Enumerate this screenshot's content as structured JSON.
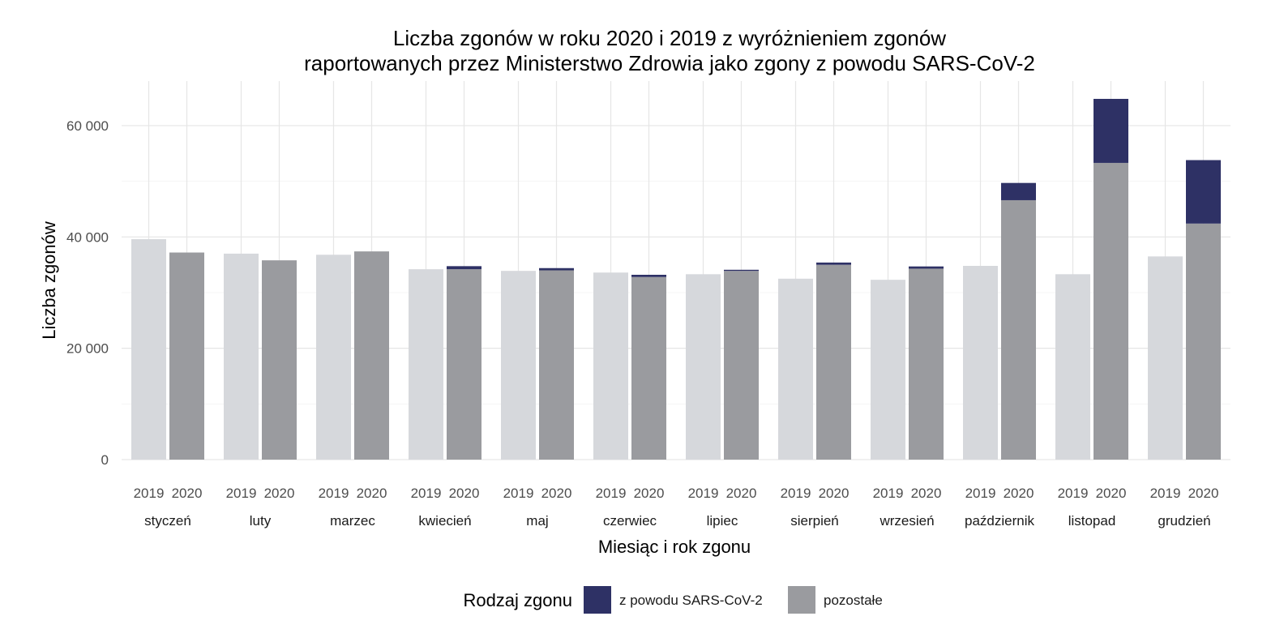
{
  "chart_data": {
    "type": "bar",
    "title_lines": [
      "Liczba zgonów w roku 2020 i 2019 z wyróżnieniem zgonów",
      "raportowanych przez Ministerstwo Zdrowia jako zgony z powodu SARS-CoV-2"
    ],
    "xlabel": "Miesiąc i rok zgonu",
    "ylabel": "Liczba zgonów",
    "ylim": [
      0,
      68000
    ],
    "y_ticks": [
      0,
      20000,
      40000,
      60000
    ],
    "y_tick_labels": [
      "0",
      "20 000",
      "40 000",
      "60 000"
    ],
    "grid": true,
    "years": [
      "2019",
      "2020"
    ],
    "categories": [
      "styczeń",
      "luty",
      "marzec",
      "kwiecień",
      "maj",
      "czerwiec",
      "lipiec",
      "sierpień",
      "wrzesień",
      "październik",
      "listopad",
      "grudzień"
    ],
    "series": [
      {
        "name": "2019",
        "values": [
          39600,
          37000,
          36800,
          34200,
          33900,
          33600,
          33300,
          32500,
          32300,
          34800,
          33300,
          36500
        ]
      },
      {
        "name": "2020 pozostałe",
        "values": [
          37200,
          35800,
          37400,
          34200,
          34000,
          32800,
          33900,
          35000,
          34300,
          46600,
          53300,
          42400
        ]
      },
      {
        "name": "2020 z powodu SARS-CoV-2",
        "values": [
          0,
          0,
          0,
          550,
          400,
          400,
          200,
          400,
          400,
          3100,
          11500,
          11400
        ]
      }
    ],
    "legend": {
      "title": "Rodzaj zgonu",
      "placement": "bottom",
      "items": [
        {
          "label": "z powodu SARS-CoV-2",
          "color": "#2e3165"
        },
        {
          "label": "pozostałe",
          "color": "#9a9b9f"
        }
      ]
    },
    "colors": {
      "y2019": "#d6d8dc",
      "other2020": "#9a9b9f",
      "covid2020": "#2e3165",
      "grid_major": "#e6e6e6",
      "grid_minor": "#f2f2f2"
    }
  }
}
